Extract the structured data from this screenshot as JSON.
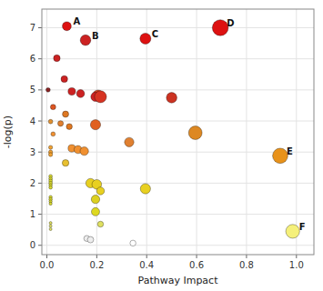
{
  "chart_data": {
    "type": "scatter",
    "xlabel": "Pathway Impact",
    "ylabel": "-log(p)",
    "x": [
      0.08,
      0.155,
      0.395,
      0.695,
      0.935,
      0.985,
      0.04,
      0.07,
      0.005,
      0.1,
      0.135,
      0.205,
      0.195,
      0.215,
      0.5,
      0.025,
      0.075,
      0.015,
      0.055,
      0.09,
      0.195,
      0.595,
      0.025,
      0.1,
      0.125,
      0.15,
      0.33,
      0.015,
      0.015,
      0.015,
      0.075,
      0.015,
      0.015,
      0.015,
      0.015,
      0.015,
      0.015,
      0.175,
      0.2,
      0.215,
      0.395,
      0.195,
      0.015,
      0.015,
      0.015,
      0.015,
      0.195,
      0.015,
      0.015,
      0.015,
      0.215,
      0.16,
      0.175,
      0.345
    ],
    "y": [
      7.05,
      6.6,
      6.65,
      7.0,
      2.88,
      0.45,
      6.02,
      5.35,
      5.0,
      4.95,
      4.88,
      4.82,
      4.78,
      4.78,
      4.75,
      4.45,
      4.22,
      3.98,
      3.92,
      3.82,
      3.88,
      3.62,
      3.58,
      3.12,
      3.08,
      3.03,
      3.32,
      3.15,
      3.0,
      2.92,
      2.65,
      2.22,
      2.14,
      2.07,
      2.0,
      1.93,
      1.86,
      2.0,
      1.96,
      1.75,
      1.82,
      1.48,
      1.55,
      1.48,
      1.41,
      1.34,
      1.08,
      0.72,
      0.62,
      0.52,
      0.68,
      0.22,
      0.18,
      0.07
    ],
    "sizes": [
      50,
      70,
      75,
      160,
      145,
      120,
      28,
      28,
      12,
      35,
      40,
      75,
      55,
      90,
      70,
      18,
      25,
      12,
      20,
      22,
      65,
      115,
      12,
      35,
      40,
      45,
      55,
      10,
      10,
      10,
      28,
      8,
      8,
      8,
      8,
      7,
      7,
      55,
      58,
      38,
      65,
      45,
      7,
      7,
      6,
      6,
      42,
      5,
      5,
      5,
      22,
      22,
      25,
      22
    ],
    "colors": [
      "#dd1111",
      "#cc2222",
      "#dd1111",
      "#dd1111",
      "#e8921a",
      "#f5f07a",
      "#cc2222",
      "#cc2222",
      "#882222",
      "#cc2222",
      "#cc2222",
      "#d84422",
      "#cc2222",
      "#d63322",
      "#cc3322",
      "#dd5522",
      "#dd7722",
      "#e09030",
      "#e08030",
      "#e07820",
      "#e06020",
      "#dd8822",
      "#f09030",
      "#f09030",
      "#f09030",
      "#f09030",
      "#e08030",
      "#f0a030",
      "#f0a030",
      "#f0a030",
      "#e8c030",
      "#d8d830",
      "#d8d830",
      "#d8d830",
      "#d8d830",
      "#d8d830",
      "#d8d830",
      "#e8d020",
      "#e8d020",
      "#e8d020",
      "#e8d020",
      "#dcd020",
      "#d8d830",
      "#d8d830",
      "#d8d830",
      "#d8d830",
      "#ddd820",
      "#e0e060",
      "#e0e060",
      "#e0e060",
      "#dfe060",
      "#eeeeee",
      "#eeeeee",
      "#ffffff"
    ],
    "annotations": [
      {
        "text": "A",
        "x": 0.08,
        "y": 7.05
      },
      {
        "text": "B",
        "x": 0.155,
        "y": 6.6
      },
      {
        "text": "C",
        "x": 0.395,
        "y": 6.65
      },
      {
        "text": "D",
        "x": 0.695,
        "y": 7.0
      },
      {
        "text": "E",
        "x": 0.935,
        "y": 2.88
      },
      {
        "text": "F",
        "x": 0.985,
        "y": 0.45
      }
    ],
    "xlim": [
      -0.02,
      1.07
    ],
    "ylim": [
      -0.3,
      7.6
    ],
    "xticks": [
      {
        "value": 0.0,
        "label": "0.0"
      },
      0.2,
      0.4,
      0.6,
      0.8,
      {
        "value": 1.0,
        "label": "1.0"
      }
    ],
    "yticks": [
      0,
      1,
      2,
      3,
      4,
      5,
      6,
      7
    ],
    "grid": true
  }
}
